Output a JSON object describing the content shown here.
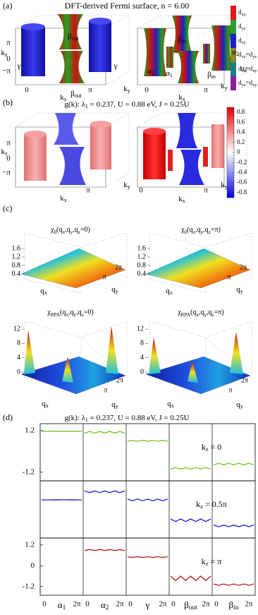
{
  "panel_a": {
    "label": "(a)",
    "title": [
      "DFT-derived Fermi surface, ",
      "",
      "n = 6.00"
    ],
    "orbital_legend": [
      {
        "label": [
          "d",
          "xz"
        ],
        "color": "#e31a1c"
      },
      {
        "label": [
          "d",
          "yz"
        ],
        "color": "#2ca02c"
      },
      {
        "label": [
          "d",
          "xy"
        ],
        "color": "#1f1fd0"
      },
      {
        "label": [
          "d",
          "xz",
          "=d",
          "yz"
        ],
        "color": "#8c8a2a"
      },
      {
        "label": [
          "d",
          "xz",
          "=d",
          "xy"
        ],
        "color": "#1a7f8a"
      },
      {
        "label": [
          "d",
          "yz",
          "=d",
          "xy"
        ],
        "color": "#8a1f9a"
      }
    ],
    "left_labels": [
      [
        "β",
        "out"
      ],
      "γ",
      "γ",
      [
        "β",
        "out"
      ],
      [
        "k",
        "z"
      ],
      "π",
      "0",
      "−π",
      "0",
      [
        "k",
        "x"
      ],
      "π",
      [
        "k",
        "y"
      ]
    ],
    "right_labels": [
      [
        "β",
        "in"
      ],
      [
        "α",
        "2"
      ],
      [
        "α",
        "1"
      ],
      [
        "α",
        "2"
      ],
      [
        "α",
        "1"
      ],
      [
        "β",
        "in"
      ],
      "0",
      [
        "k",
        "x"
      ],
      "π",
      [
        "k",
        "y"
      ]
    ]
  },
  "panel_b": {
    "label": "(b)",
    "title": [
      "g(k):  λ",
      "1",
      " = 0.237,  U = 0.88 eV,  J = 0.25U"
    ],
    "left_labels": [
      [
        "k",
        "z"
      ],
      "π",
      "0",
      "−π",
      [
        "k",
        "x"
      ],
      "π",
      [
        "k",
        "y"
      ]
    ],
    "right_labels": [
      "0",
      [
        "k",
        "x"
      ],
      "π",
      [
        "k",
        "y"
      ]
    ],
    "colorbar": {
      "lim": [
        -0.9,
        0.9
      ],
      "ticks": [
        0.8,
        0.6,
        0.4,
        0.2,
        0,
        -0.2,
        -0.4,
        -0.6,
        -0.8
      ]
    }
  },
  "panel_c": {
    "label": "(c)",
    "plots": [
      {
        "title": [
          "χ",
          "0",
          "(q",
          "x",
          ",q",
          "y",
          ",q",
          "z",
          "=0)"
        ],
        "zlim": [
          0.2,
          1.8
        ],
        "zticks": [
          1.6,
          1.2,
          0.8,
          0.4
        ],
        "xlabel": [
          "q",
          "x"
        ],
        "ylabel": [
          "q",
          "y"
        ],
        "yticks": [
          "π",
          "2π"
        ]
      },
      {
        "title": [
          "χ",
          "0",
          "(q",
          "x",
          ",q",
          "y",
          ",q",
          "z",
          "=π)"
        ],
        "zlim": [
          0.2,
          1.8
        ],
        "zticks": [
          1.6,
          1.2,
          0.8,
          0.4
        ],
        "xlabel": [
          "q",
          "x"
        ],
        "ylabel": [
          "q",
          "y"
        ],
        "yticks": [
          "π",
          "2π"
        ]
      },
      {
        "title": [
          "χ",
          "RPA",
          "(q",
          "x",
          ",q",
          "y",
          ",q",
          "z",
          "=0)"
        ],
        "zlim": [
          0,
          14
        ],
        "zticks": [
          12,
          8,
          4,
          0
        ],
        "xlabel": [
          "q",
          "x"
        ],
        "ylabel": [
          "q",
          "y"
        ],
        "yticks": [
          "π",
          "2π"
        ]
      },
      {
        "title": [
          "χ",
          "RPA",
          "(q",
          "x",
          ",q",
          "y",
          ",q",
          "z",
          "=π)"
        ],
        "zlim": [
          0,
          14
        ],
        "zticks": [
          12,
          8,
          4,
          0
        ],
        "xlabel": [
          "q",
          "x"
        ],
        "ylabel": [
          "q",
          "y"
        ],
        "yticks": [
          "π",
          "2π"
        ]
      }
    ]
  },
  "panel_d": {
    "label": "(d)",
    "title": [
      "g(k):  λ",
      "1",
      " = 0.237,  U = 0.88 eV,  J = 0.25U"
    ],
    "ylim": [
      -1.7,
      1.6
    ],
    "segments": [
      {
        "name": [
          "α",
          "1"
        ],
        "start": "0",
        "end": "2π"
      },
      {
        "name": [
          "α",
          "2"
        ],
        "start": "0",
        "end": "2π"
      },
      {
        "name": [
          "γ",
          ""
        ],
        "start": "0",
        "end": "2π"
      },
      {
        "name": [
          "β",
          "out"
        ],
        "start": "0",
        "end": "2π"
      },
      {
        "name": [
          "β",
          "in"
        ],
        "start": "0",
        "end": "2π"
      }
    ],
    "rows": [
      {
        "label": [
          "k",
          "z",
          " = 0"
        ],
        "color": "#77c21e",
        "yticks": [
          1.2,
          -1.2
        ],
        "series": [
          [
            1.16,
            1.16,
            1.17,
            1.16,
            1.16,
            1.16,
            1.17,
            1.16,
            1.16
          ],
          [
            1.05,
            1.15,
            1.05,
            1.15,
            1.05,
            1.15,
            1.05,
            1.15,
            1.05
          ],
          [
            0.58,
            0.64,
            0.58,
            0.64,
            0.58,
            0.64,
            0.58,
            0.64,
            0.58
          ],
          [
            -1.02,
            -0.94,
            -1.02,
            -0.94,
            -1.02,
            -0.94,
            -1.02,
            -0.94,
            -1.02
          ],
          [
            -0.78,
            -0.68,
            -0.78,
            -0.68,
            -0.78,
            -0.68,
            -0.78,
            -0.68,
            -0.78
          ]
        ]
      },
      {
        "label": [
          "k",
          "z",
          " = 0.5π"
        ],
        "color": "#1c1ccc",
        "yticks": [],
        "series": [
          [
            0.5,
            0.5,
            0.5,
            0.51,
            0.5,
            0.5,
            0.51,
            0.5,
            0.5
          ],
          [
            1.02,
            0.92,
            1.02,
            0.92,
            1.02,
            0.92,
            1.02,
            0.92,
            1.02
          ],
          [
            0.55,
            0.45,
            0.55,
            0.45,
            0.55,
            0.45,
            0.55,
            0.45,
            0.55
          ],
          [
            -0.6,
            -0.75,
            -0.6,
            -0.75,
            -0.6,
            -0.75,
            -0.6,
            -0.75,
            -0.6
          ],
          [
            -0.95,
            -1.05,
            -0.95,
            -1.05,
            -0.95,
            -1.05,
            -0.95,
            -1.05,
            -0.95
          ]
        ]
      },
      {
        "label": [
          "k",
          "z",
          " = π"
        ],
        "color": "#b0191b",
        "yticks": [
          1.2,
          0,
          -1.2
        ],
        "series": [
          [
            null,
            null,
            null,
            null,
            null,
            null,
            null,
            null,
            null
          ],
          [
            0.88,
            0.94,
            0.88,
            0.94,
            0.88,
            0.94,
            0.88,
            0.94,
            0.88
          ],
          [
            0.52,
            0.48,
            0.52,
            0.48,
            0.52,
            0.48,
            0.52,
            0.48,
            0.52
          ],
          [
            -0.6,
            -0.85,
            -0.6,
            -0.85,
            -0.6,
            -0.85,
            -0.6,
            -0.85,
            -0.6
          ],
          [
            -1.05,
            -1.13,
            -1.05,
            -1.13,
            -1.05,
            -1.13,
            -1.05,
            -1.13,
            -1.05
          ]
        ]
      }
    ]
  }
}
